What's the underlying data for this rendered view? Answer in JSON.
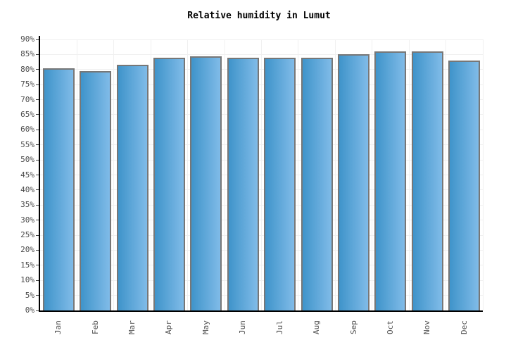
{
  "chart_data": {
    "type": "bar",
    "title": "Relative humidity in Lumut",
    "categories": [
      "Jan",
      "Feb",
      "Mar",
      "Apr",
      "May",
      "Jun",
      "Jul",
      "Aug",
      "Sep",
      "Oct",
      "Nov",
      "Dec"
    ],
    "values": [
      80.5,
      79.5,
      81.5,
      84,
      84.5,
      84,
      84,
      84,
      85,
      86,
      86,
      83
    ],
    "unit": "%",
    "xlabel": "",
    "ylabel": "",
    "ylim": [
      0,
      90
    ],
    "ytick_step": 5,
    "ytick_labels": [
      "0%",
      "5%",
      "10%",
      "15%",
      "20%",
      "25%",
      "30%",
      "35%",
      "40%",
      "45%",
      "50%",
      "55%",
      "60%",
      "65%",
      "70%",
      "75%",
      "80%",
      "85%",
      "90%"
    ],
    "grid": true,
    "legend_position": "none",
    "colors": {
      "bar_gradient_left": "#3f94ca",
      "bar_gradient_right": "#80bbe8",
      "bar_border": "#777777",
      "gridline": "#f0f0f0",
      "axis": "#000000",
      "tick_label": "#4a4a4a",
      "month_label": "#555555",
      "title": "#000000",
      "background": "#ffffff"
    }
  }
}
